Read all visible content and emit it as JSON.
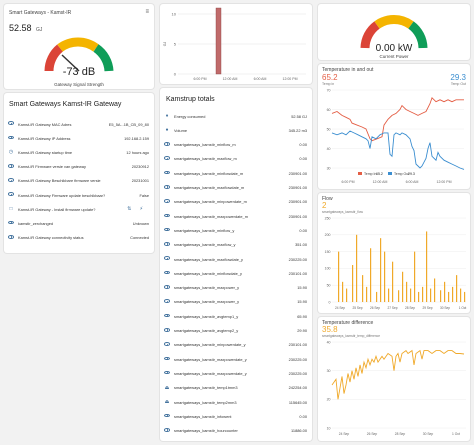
{
  "signal_card": {
    "title": "Smart Gateways - Kamst-IR",
    "value": "52.58",
    "unit": "GJ",
    "gauge_value": "-73 dB",
    "gauge_label": "Gateway Signal Strength",
    "menu_icon": "bars-icon"
  },
  "gateway_card": {
    "title": "Smart Gateways Kamst-IR Gateway",
    "rows": [
      {
        "icon": "eye-icon",
        "label": "Kamst-IR Gateway MAC Adres",
        "value": "E5_5A...1B_CB_09_80"
      },
      {
        "icon": "eye-icon",
        "label": "Kamst-IR Gateway IP Address",
        "value": "192.168.2.159"
      },
      {
        "icon": "clock-icon",
        "label": "Kamst-IR Gateway startup time",
        "value": "12 hours ago"
      },
      {
        "icon": "eye-icon",
        "label": "Kamst-IR Firmware versie van gateway",
        "value": "20230912"
      },
      {
        "icon": "eye-icon",
        "label": "Kamst-IR Gateway Beschikbare firmware versie",
        "value": "20231001"
      },
      {
        "icon": "eye-icon",
        "label": "Kamst-IR Gateway Firmware update beschikbaar?",
        "value": "False"
      },
      {
        "icon": "phone-icon",
        "label": "Kamst-IR Gateway - Install firmware update?",
        "value": ""
      },
      {
        "icon": "eye-icon",
        "label": "kamstir_zerchanged",
        "value": "Unknown"
      },
      {
        "icon": "eye-icon",
        "label": "Kamst-IR Gateway connectivity status",
        "value": "Connected"
      }
    ]
  },
  "histogram": {
    "y_ticks": [
      "10",
      "5",
      "0"
    ],
    "y_axis_label": "GJ",
    "x_ticks": [
      "6:00 PM",
      "12:00 AM",
      "6:00 AM",
      "12:00 PM"
    ],
    "bar_value": 11
  },
  "totals_card": {
    "title": "Kamstrup totals",
    "rows": [
      {
        "icon": "flame-icon",
        "label": "Energy consumed",
        "value": "52.58 GJ"
      },
      {
        "icon": "beaker-icon",
        "label": "Volume",
        "value": "345.22 m3"
      },
      {
        "icon": "eye-icon",
        "label": "smartgateways_kamstir_minflow_m",
        "value": "0.00"
      },
      {
        "icon": "eye-icon",
        "label": "smartgateways_kamstir_maxflow_m",
        "value": "0.00"
      },
      {
        "icon": "eye-icon",
        "label": "smartgateways_kamstir_minflowdate_m",
        "value": "230901.00"
      },
      {
        "icon": "eye-icon",
        "label": "smartgateways_kamstir_maxflowdate_m",
        "value": "230901.00"
      },
      {
        "icon": "eye-icon",
        "label": "smartgateways_kamstir_minpowerdate_m",
        "value": "230901.00"
      },
      {
        "icon": "eye-icon",
        "label": "smartgateways_kamstir_maxpowerdate_m",
        "value": "230901.00"
      },
      {
        "icon": "eye-icon",
        "label": "smartgateways_kamstir_minflow_y",
        "value": "0.00"
      },
      {
        "icon": "eye-icon",
        "label": "smartgateways_kamstir_maxflow_y",
        "value": "351.00"
      },
      {
        "icon": "eye-icon",
        "label": "smartgateways_kamstir_maxflowdate_y",
        "value": "230225.00"
      },
      {
        "icon": "eye-icon",
        "label": "smartgateways_kamstir_minflowdate_y",
        "value": "230101.00"
      },
      {
        "icon": "eye-icon",
        "label": "smartgateways_kamstir_maxpower_y",
        "value": "15.90"
      },
      {
        "icon": "eye-icon",
        "label": "smartgateways_kamstir_maxpower_y",
        "value": "15.90"
      },
      {
        "icon": "eye-icon",
        "label": "smartgateways_kamstir_avgtemp1_y",
        "value": "65.90"
      },
      {
        "icon": "eye-icon",
        "label": "smartgateways_kamstir_avgtemp2_y",
        "value": "29.90"
      },
      {
        "icon": "eye-icon",
        "label": "smartgateways_kamstir_minpowerdate_y",
        "value": "230101.00"
      },
      {
        "icon": "eye-icon",
        "label": "smartgateways_kamstir_maxpowerdate_y",
        "value": "230225.00"
      },
      {
        "icon": "eye-icon",
        "label": "smartgateways_kamstir_maxpowerdate_y",
        "value": "230225.00"
      },
      {
        "icon": "thermometer-icon",
        "label": "smartgateways_kamstir_temp1tmm3",
        "value": "242254.00"
      },
      {
        "icon": "thermometer-icon",
        "label": "smartgateways_kamstir_temp2mm3",
        "value": "115645.00"
      },
      {
        "icon": "eye-icon",
        "label": "smartgateways_kamstir_infowent",
        "value": "0.00"
      },
      {
        "icon": "eye-icon",
        "label": "smartgateways_kamstir_hourcounter",
        "value": "11886.00"
      }
    ]
  },
  "power_card": {
    "value": "0.00 kW",
    "label": "Current Power"
  },
  "temp_card": {
    "title": "Temperature in and out",
    "in_value": "65.2",
    "in_label": "Temp in",
    "out_value": "29.3",
    "out_label": "Temp Out",
    "legend_in": "Temp In",
    "legend_in_value": "65.2",
    "legend_out": "Temp Out",
    "legend_out_value": "29.3",
    "y_ticks": [
      "70",
      "60",
      "50",
      "40",
      "30"
    ],
    "x_ticks": [
      "6:00 PM",
      "12:00 AM",
      "6:00 AM",
      "12:00 PM"
    ],
    "in_color": "#e45e45",
    "out_color": "#3b8ed0"
  },
  "flow_card": {
    "title": "Flow",
    "value": "2",
    "entity": "smartgateways_kamstir_flow",
    "y_ticks": [
      "250",
      "200",
      "150",
      "100",
      "50",
      "0"
    ],
    "x_ticks": [
      "24 Sep",
      "25 Sep",
      "26 Sep",
      "27 Sep",
      "28 Sep",
      "29 Sep",
      "30 Sep",
      "1 Oct"
    ],
    "color": "#f0a929"
  },
  "tempdiff_card": {
    "title": "Temperature difference",
    "value": "35.8",
    "entity": "smartgateways_kamstir_temp_difference",
    "y_ticks": [
      "40",
      "30",
      "20",
      "10"
    ],
    "x_ticks": [
      "24 Sep",
      "26 Sep",
      "28 Sep",
      "30 Sep",
      "1 Oct"
    ],
    "color": "#f0a929"
  }
}
